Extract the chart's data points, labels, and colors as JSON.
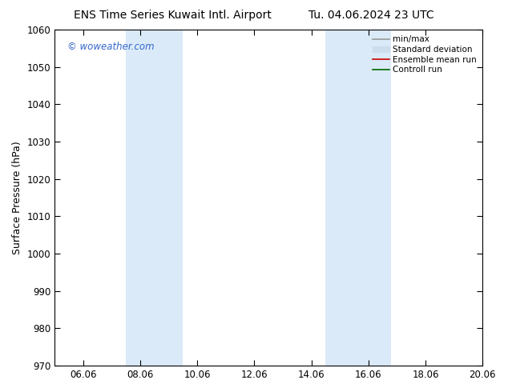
{
  "title_left": "ENS Time Series Kuwait Intl. Airport",
  "title_right": "Tu. 04.06.2024 23 UTC",
  "ylabel": "Surface Pressure (hPa)",
  "ylim": [
    970,
    1060
  ],
  "yticks": [
    970,
    980,
    990,
    1000,
    1010,
    1020,
    1030,
    1040,
    1050,
    1060
  ],
  "xlim_start": 0.0,
  "xlim_end": 15.0,
  "xtick_labels": [
    "06.06",
    "08.06",
    "10.06",
    "12.06",
    "14.06",
    "16.06",
    "18.06",
    "20.06"
  ],
  "xtick_positions": [
    1,
    3,
    5,
    7,
    9,
    11,
    13,
    15
  ],
  "shaded_bands": [
    {
      "x_start": 2.5,
      "x_end": 4.5
    },
    {
      "x_start": 9.5,
      "x_end": 11.8
    }
  ],
  "band_color": "#daeaf8",
  "watermark": "© woweather.com",
  "watermark_color": "#3366cc",
  "legend_items": [
    {
      "label": "min/max",
      "color": "#999999",
      "lw": 1.2,
      "ls": "-",
      "type": "line"
    },
    {
      "label": "Standard deviation",
      "color": "#ccddee",
      "lw": 8,
      "ls": "-",
      "type": "band"
    },
    {
      "label": "Ensemble mean run",
      "color": "#cc0000",
      "lw": 1.2,
      "ls": "-",
      "type": "line"
    },
    {
      "label": "Controll run",
      "color": "#006600",
      "lw": 1.2,
      "ls": "-",
      "type": "line"
    }
  ],
  "bg_color": "#ffffff",
  "title_fontsize": 10,
  "axis_label_fontsize": 9,
  "tick_fontsize": 8.5
}
